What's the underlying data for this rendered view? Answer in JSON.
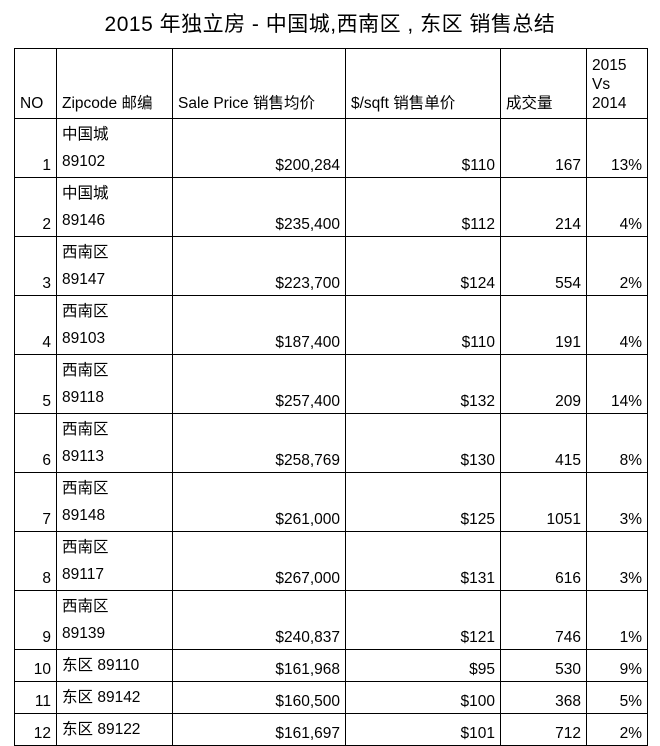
{
  "title": "2015 年独立房 - 中国城,西南区 , 东区 销售总结",
  "headers": {
    "no": "NO",
    "zip": "Zipcode 邮编",
    "price": "Sale Price 销售均价",
    "sqft": "$/sqft 销售单价",
    "count": "成交量",
    "compare_1": "2015",
    "compare_2": "Vs",
    "compare_3": "2014"
  },
  "rows": [
    {
      "no": "1",
      "area": "中国城",
      "zip": "89102",
      "price": "$200,284",
      "sqft": "$110",
      "count": "167",
      "change": "13%"
    },
    {
      "no": "2",
      "area": "中国城",
      "zip": "89146",
      "price": "$235,400",
      "sqft": "$112",
      "count": "214",
      "change": "4%"
    },
    {
      "no": "3",
      "area": "西南区",
      "zip": "89147",
      "price": "$223,700",
      "sqft": "$124",
      "count": "554",
      "change": "2%"
    },
    {
      "no": "4",
      "area": "西南区",
      "zip": "89103",
      "price": "$187,400",
      "sqft": "$110",
      "count": "191",
      "change": "4%"
    },
    {
      "no": "5",
      "area": "西南区",
      "zip": "89118",
      "price": "$257,400",
      "sqft": "$132",
      "count": "209",
      "change": "14%"
    },
    {
      "no": "6",
      "area": "西南区",
      "zip": "89113",
      "price": "$258,769",
      "sqft": "$130",
      "count": "415",
      "change": "8%"
    },
    {
      "no": "7",
      "area": "西南区",
      "zip": "89148",
      "price": "$261,000",
      "sqft": "$125",
      "count": "1051",
      "change": "3%"
    },
    {
      "no": "8",
      "area": "西南区",
      "zip": "89117",
      "price": "$267,000",
      "sqft": "$131",
      "count": "616",
      "change": "3%"
    },
    {
      "no": "9",
      "area": "西南区",
      "zip": "89139",
      "price": "$240,837",
      "sqft": "$121",
      "count": "746",
      "change": "1%"
    },
    {
      "no": "10",
      "area": "东区",
      "zip": "89110",
      "price": "$161,968",
      "sqft": "$95",
      "count": "530",
      "change": "9%"
    },
    {
      "no": "11",
      "area": "东区",
      "zip": "89142",
      "price": "$160,500",
      "sqft": "$100",
      "count": "368",
      "change": "5%"
    },
    {
      "no": "12",
      "area": "东区",
      "zip": "89122",
      "price": "$161,697",
      "sqft": "$101",
      "count": "712",
      "change": "2%"
    }
  ]
}
